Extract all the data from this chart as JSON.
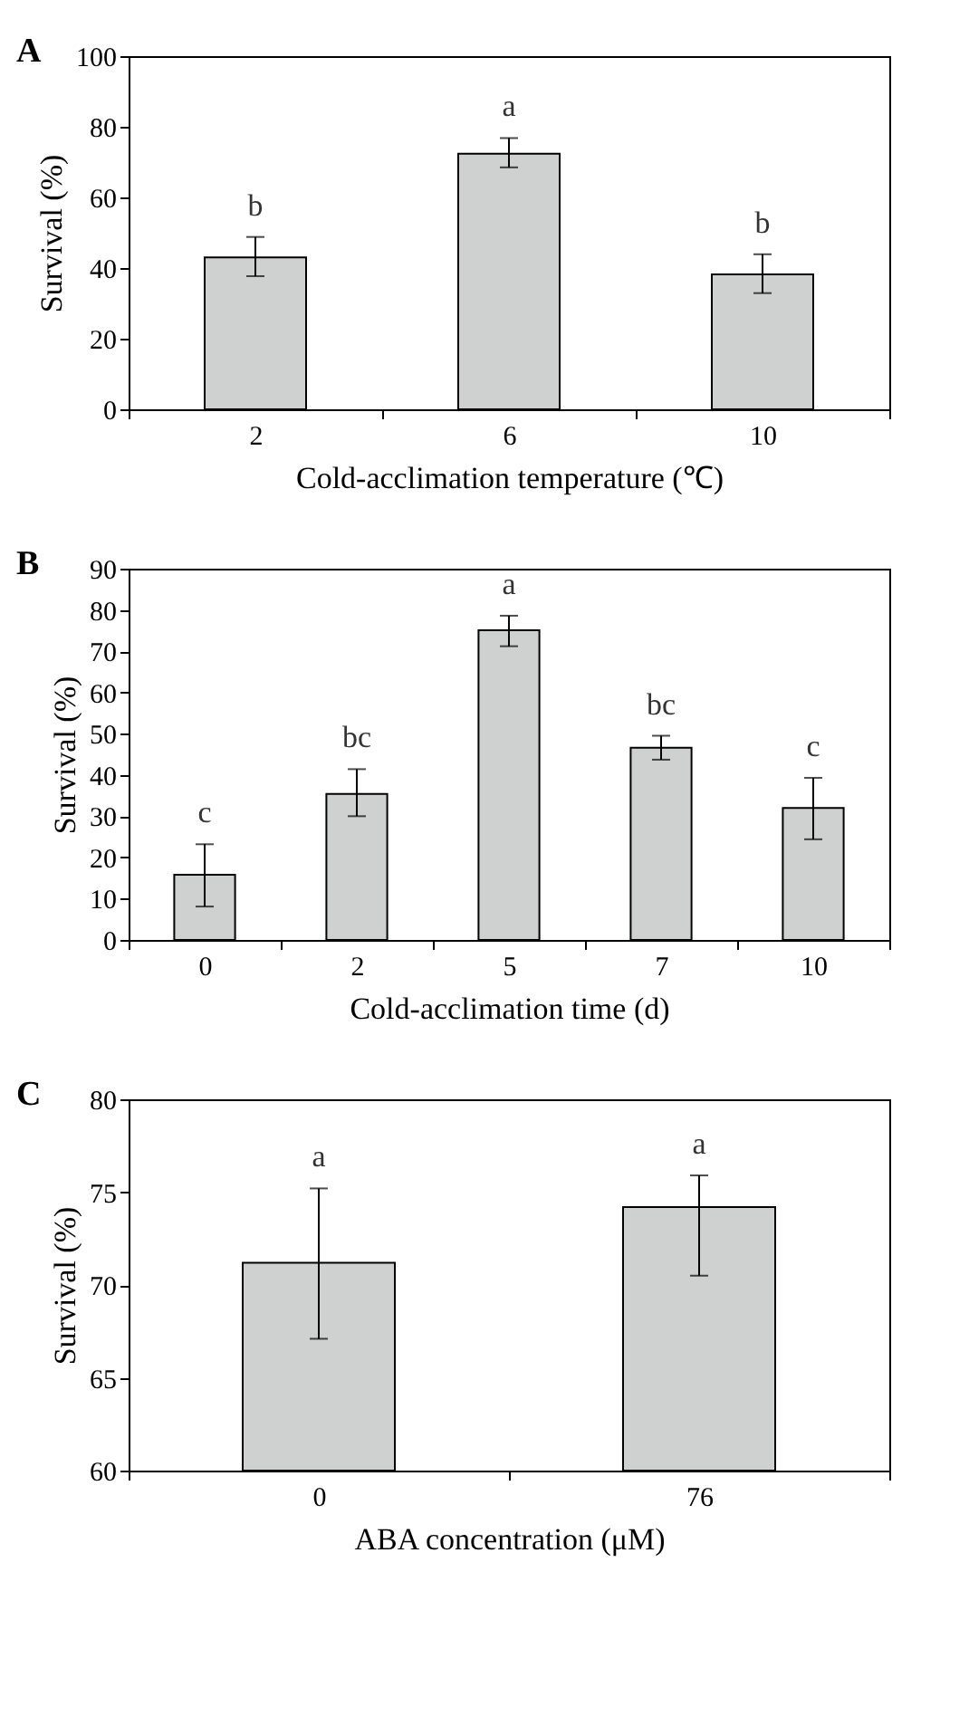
{
  "chart_data": [
    {
      "type": "bar",
      "title": "A",
      "categories": [
        "2",
        "6",
        "10"
      ],
      "values": [
        43.0,
        72.4,
        38.2
      ],
      "color": "#cfd1d1",
      "errors": [
        [
          37.7,
          48.8
        ],
        [
          68.5,
          76.8
        ],
        [
          32.9,
          43.9
        ]
      ],
      "xlabel": "Cold-acclimation temperature (℃)",
      "ylabel": "Survival (%)",
      "ylim": [
        0,
        100
      ],
      "yticks": [
        0,
        20,
        40,
        60,
        80,
        100
      ],
      "grid": false,
      "annotations": [
        "b",
        "a",
        "b"
      ]
    },
    {
      "type": "bar",
      "title": "B",
      "categories": [
        "0",
        "2",
        "5",
        "7",
        "10"
      ],
      "values": [
        15.8,
        35.4,
        75.1,
        46.6,
        32.0
      ],
      "color": "#cfd1d1",
      "errors": [
        [
          8.1,
          23.2
        ],
        [
          30.0,
          41.4
        ],
        [
          71.2,
          78.6
        ],
        [
          43.7,
          49.5
        ],
        [
          24.4,
          39.3
        ]
      ],
      "xlabel": "Cold-acclimation time (d)",
      "ylabel": "Survival (%)",
      "ylim": [
        0,
        90
      ],
      "yticks": [
        0,
        10,
        20,
        30,
        40,
        50,
        60,
        70,
        80,
        90
      ],
      "grid": false,
      "annotations": [
        "c",
        "bc",
        "a",
        "bc",
        "c"
      ]
    },
    {
      "type": "bar",
      "title": "C",
      "categories": [
        "0",
        "76"
      ],
      "values": [
        71.2,
        74.2
      ],
      "color": "#cfd1d1",
      "errors": [
        [
          67.1,
          75.2
        ],
        [
          70.5,
          75.9
        ]
      ],
      "xlabel": "ABA concentration (μM)",
      "ylabel": "Survival (%)",
      "ylim": [
        60,
        80
      ],
      "yticks": [
        60,
        65,
        70,
        75,
        80
      ],
      "grid": false,
      "annotations": [
        "a",
        "a"
      ]
    }
  ]
}
